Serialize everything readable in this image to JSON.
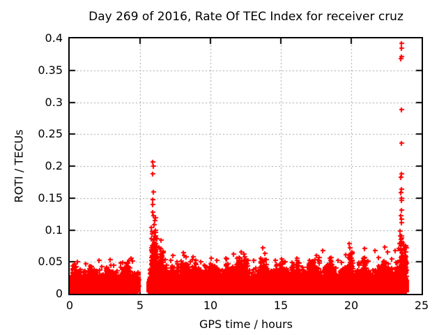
{
  "chart_data": {
    "type": "scatter",
    "title": "Day 269 of 2016, Rate Of TEC Index for receiver cruz",
    "xlabel": "GPS time / hours",
    "ylabel": "ROTI / TECUs",
    "xlim": [
      0,
      25
    ],
    "ylim": [
      0,
      0.4
    ],
    "xticks": [
      0,
      5,
      10,
      15,
      20,
      25
    ],
    "xtick_labels": [
      "0",
      "5",
      "10",
      "15",
      "20",
      "25"
    ],
    "yticks": [
      0,
      0.05,
      0.1,
      0.15,
      0.2,
      0.25,
      0.3,
      0.35,
      0.4
    ],
    "ytick_labels": [
      "0",
      "0.05",
      "0.1",
      "0.15",
      "0.2",
      "0.25",
      "0.3",
      "0.35",
      "0.4"
    ],
    "grid": {
      "visible": true,
      "style": "dotted",
      "color": "#a0a0a0"
    },
    "frame_color": "#000000",
    "marker": {
      "shape": "plus",
      "color": "#ff0000",
      "size": 7
    },
    "seed": 42,
    "notes": "Dense baseline band of ROTI values ~0.005-0.05 TECU across 0-23.9 h; data gap ~4.9-5.6 h; spike cluster near 5.9 h reaching 0.207; large spike cluster near 23.55 h reaching 0.392.",
    "band_segments": [
      {
        "x0": 0.0,
        "x1": 4.88,
        "n": 3000,
        "ybase": 0.003,
        "scale": 0.011,
        "ymax": 0.058
      },
      {
        "x0": 5.58,
        "x1": 23.93,
        "n": 11000,
        "ybase": 0.003,
        "scale": 0.012,
        "ymax": 0.062
      },
      {
        "x0": 5.8,
        "x1": 6.15,
        "n": 150,
        "ybase": 0.035,
        "scale": 0.028,
        "ymax": 0.132
      },
      {
        "x0": 6.15,
        "x1": 6.7,
        "n": 80,
        "ybase": 0.025,
        "scale": 0.018,
        "ymax": 0.098
      },
      {
        "x0": 7.9,
        "x1": 8.4,
        "n": 50,
        "ybase": 0.028,
        "scale": 0.011,
        "ymax": 0.062
      },
      {
        "x0": 9.0,
        "x1": 9.45,
        "n": 30,
        "ybase": 0.026,
        "scale": 0.009,
        "ymax": 0.05
      },
      {
        "x0": 10.3,
        "x1": 10.6,
        "n": 25,
        "ybase": 0.026,
        "scale": 0.009,
        "ymax": 0.05
      },
      {
        "x0": 11.5,
        "x1": 12.55,
        "n": 80,
        "ybase": 0.028,
        "scale": 0.012,
        "ymax": 0.064
      },
      {
        "x0": 13.55,
        "x1": 14.0,
        "n": 45,
        "ybase": 0.028,
        "scale": 0.012,
        "ymax": 0.062
      },
      {
        "x0": 14.9,
        "x1": 15.4,
        "n": 25,
        "ybase": 0.026,
        "scale": 0.009,
        "ymax": 0.05
      },
      {
        "x0": 16.9,
        "x1": 17.6,
        "n": 35,
        "ybase": 0.027,
        "scale": 0.01,
        "ymax": 0.056
      },
      {
        "x0": 18.2,
        "x1": 18.6,
        "n": 25,
        "ybase": 0.027,
        "scale": 0.01,
        "ymax": 0.054
      },
      {
        "x0": 19.78,
        "x1": 20.1,
        "n": 35,
        "ybase": 0.032,
        "scale": 0.014,
        "ymax": 0.072
      },
      {
        "x0": 20.85,
        "x1": 21.1,
        "n": 18,
        "ybase": 0.028,
        "scale": 0.011,
        "ymax": 0.058
      },
      {
        "x0": 22.25,
        "x1": 22.7,
        "n": 30,
        "ybase": 0.028,
        "scale": 0.012,
        "ymax": 0.064
      },
      {
        "x0": 23.45,
        "x1": 23.9,
        "n": 100,
        "ybase": 0.032,
        "scale": 0.022,
        "ymax": 0.112
      }
    ],
    "outlier_points": [
      [
        5.9,
        0.207
      ],
      [
        5.92,
        0.2
      ],
      [
        5.9,
        0.188
      ],
      [
        5.93,
        0.16
      ],
      [
        5.9,
        0.147
      ],
      [
        5.91,
        0.14
      ],
      [
        5.88,
        0.128
      ],
      [
        5.95,
        0.122
      ],
      [
        6.02,
        0.115
      ],
      [
        5.97,
        0.108
      ],
      [
        23.54,
        0.392
      ],
      [
        23.56,
        0.385
      ],
      [
        23.55,
        0.372
      ],
      [
        23.53,
        0.368
      ],
      [
        23.56,
        0.288
      ],
      [
        23.54,
        0.236
      ],
      [
        23.57,
        0.188
      ],
      [
        23.52,
        0.183
      ],
      [
        23.55,
        0.164
      ],
      [
        23.53,
        0.158
      ],
      [
        23.57,
        0.15
      ],
      [
        23.54,
        0.146
      ],
      [
        23.56,
        0.131
      ],
      [
        23.52,
        0.122
      ],
      [
        23.55,
        0.117
      ],
      [
        23.58,
        0.111
      ],
      [
        23.48,
        0.098
      ],
      [
        23.46,
        0.091
      ],
      [
        23.5,
        0.085
      ],
      [
        23.42,
        0.079
      ],
      [
        23.35,
        0.071
      ],
      [
        0.55,
        0.05
      ],
      [
        1.15,
        0.047
      ],
      [
        2.1,
        0.052
      ],
      [
        2.85,
        0.054
      ],
      [
        3.6,
        0.048
      ],
      [
        4.35,
        0.056
      ],
      [
        6.55,
        0.06
      ],
      [
        6.8,
        0.054
      ],
      [
        7.2,
        0.052
      ],
      [
        8.05,
        0.065
      ],
      [
        8.25,
        0.058
      ],
      [
        9.3,
        0.05
      ],
      [
        10.45,
        0.053
      ],
      [
        11.1,
        0.056
      ],
      [
        11.65,
        0.062
      ],
      [
        12.2,
        0.066
      ],
      [
        12.45,
        0.058
      ],
      [
        13.05,
        0.052
      ],
      [
        13.7,
        0.072
      ],
      [
        13.88,
        0.063
      ],
      [
        14.6,
        0.053
      ],
      [
        15.3,
        0.05
      ],
      [
        16.15,
        0.056
      ],
      [
        17.05,
        0.053
      ],
      [
        17.5,
        0.06
      ],
      [
        17.95,
        0.068
      ],
      [
        18.45,
        0.056
      ],
      [
        19.05,
        0.052
      ],
      [
        19.85,
        0.079
      ],
      [
        19.92,
        0.072
      ],
      [
        20.05,
        0.066
      ],
      [
        20.95,
        0.071
      ],
      [
        21.7,
        0.068
      ],
      [
        22.4,
        0.073
      ],
      [
        22.58,
        0.066
      ],
      [
        23.1,
        0.068
      ]
    ]
  }
}
